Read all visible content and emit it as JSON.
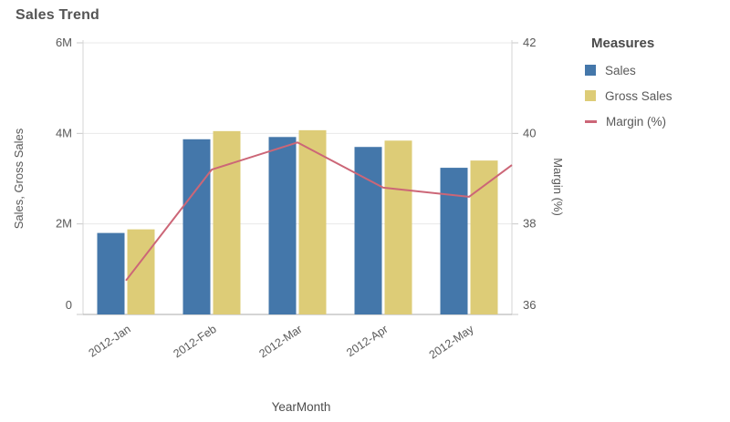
{
  "title": "Sales Trend",
  "chart_data": {
    "type": "combo",
    "x_axis": {
      "title": "YearMonth",
      "categories": [
        "2012-Jan",
        "2012-Feb",
        "2012-Mar",
        "2012-Apr",
        "2012-May"
      ]
    },
    "left_axis": {
      "title": "Sales, Gross Sales",
      "tick_labels": [
        "0",
        "2M",
        "4M",
        "6M"
      ],
      "tick_values_millions": [
        0,
        2,
        4,
        6
      ],
      "range_millions": [
        0,
        6
      ]
    },
    "right_axis": {
      "title": "Margin (%)",
      "tick_labels": [
        "36",
        "38",
        "40",
        "42"
      ],
      "tick_values": [
        36,
        38,
        40,
        42
      ],
      "range": [
        36,
        42
      ]
    },
    "legend": {
      "title": "Measures",
      "position": "right"
    },
    "series": [
      {
        "name": "Sales",
        "type": "bar",
        "axis": "left",
        "unit": "M",
        "color": "#4477aa",
        "values": [
          1.8,
          3.87,
          3.92,
          3.7,
          3.24
        ]
      },
      {
        "name": "Gross Sales",
        "type": "bar",
        "axis": "left",
        "unit": "M",
        "color": "#ddcc77",
        "values": [
          1.88,
          4.05,
          4.07,
          3.84,
          3.4
        ]
      },
      {
        "name": "Margin (%)",
        "type": "line",
        "axis": "right",
        "color": "#cc6677",
        "values": [
          36.75,
          39.2,
          39.8,
          38.8,
          38.6
        ],
        "edge_value_clipped_right": 39.3
      }
    ],
    "grid": true
  },
  "colors": {
    "background": "#ffffff",
    "title_text": "#545454",
    "axis_text": "#595959",
    "axis_title_text": "#4d4d4d",
    "gridline": "#e9e9e9",
    "axis_line": "#d6d6d6",
    "baseline": "#ababab",
    "tick": "#c9c9c9"
  }
}
